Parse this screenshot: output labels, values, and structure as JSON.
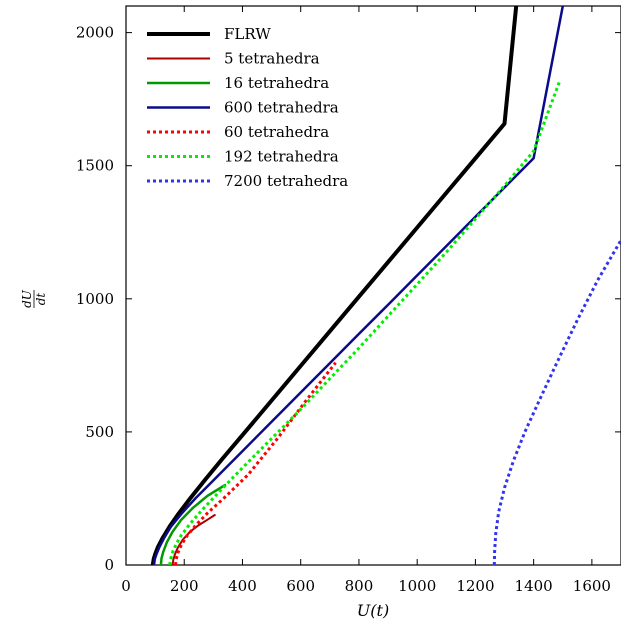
{
  "chart_data": {
    "type": "line",
    "title": "",
    "xlabel": "U(t)",
    "ylabel_num": "dU",
    "ylabel_den": "dt",
    "xlim": [
      0,
      1700
    ],
    "ylim": [
      0,
      2100
    ],
    "xticks": [
      0,
      200,
      400,
      600,
      800,
      1000,
      1200,
      1400,
      1600
    ],
    "yticks": [
      0,
      500,
      1000,
      1500,
      2000
    ],
    "grid": false,
    "legend_position": "top-left",
    "series": [
      {
        "name": "FLRW",
        "color": "#000000",
        "style": "solid",
        "width": 4,
        "x": [
          92,
          95,
          100,
          110,
          125,
          150,
          180,
          220,
          270,
          330,
          400,
          500,
          600,
          700,
          800,
          900,
          1000,
          1100,
          1200,
          1300,
          1340
        ],
        "y": [
          0,
          22,
          40,
          68,
          100,
          145,
          192,
          250,
          318,
          398,
          488,
          618,
          748,
          878,
          1008,
          1138,
          1268,
          1398,
          1528,
          1658,
          2100
        ]
      },
      {
        "name": "5 tetrahedra",
        "color": "#aa0000",
        "style": "solid",
        "width": 2,
        "x": [
          160,
          162,
          168,
          178,
          195,
          220,
          250,
          280,
          305
        ],
        "y": [
          0,
          18,
          40,
          65,
          95,
          125,
          150,
          170,
          188
        ]
      },
      {
        "name": "16 tetrahedra",
        "color": "#009900",
        "style": "solid",
        "width": 2.5,
        "x": [
          120,
          122,
          128,
          140,
          160,
          190,
          230,
          280,
          340
        ],
        "y": [
          0,
          25,
          50,
          85,
          125,
          170,
          215,
          260,
          300
        ]
      },
      {
        "name": "600 tetrahedra",
        "color": "#0b0b8a",
        "style": "solid",
        "width": 2.5,
        "x": [
          96,
          99,
          105,
          115,
          130,
          155,
          190,
          240,
          300,
          400,
          500,
          600,
          700,
          800,
          900,
          1000,
          1100,
          1200,
          1300,
          1400,
          1500
        ],
        "y": [
          0,
          22,
          42,
          68,
          100,
          145,
          192,
          252,
          318,
          428,
          538,
          648,
          758,
          868,
          978,
          1088,
          1198,
          1308,
          1418,
          1528,
          2100
        ]
      },
      {
        "name": "60 tetrahedra",
        "color": "#ff0000",
        "style": "dotted",
        "width": 3,
        "x": [
          170,
          172,
          178,
          190,
          210,
          240,
          280,
          340,
          420,
          520,
          620,
          720
        ],
        "y": [
          0,
          20,
          45,
          75,
          110,
          150,
          195,
          255,
          340,
          475,
          620,
          760
        ]
      },
      {
        "name": "192 tetrahedra",
        "color": "#00ee00",
        "style": "dotted",
        "width": 3,
        "x": [
          150,
          153,
          160,
          172,
          190,
          220,
          260,
          320,
          400,
          500,
          600,
          700,
          800,
          900,
          1000,
          1100,
          1200,
          1300,
          1400,
          1490
        ],
        "y": [
          0,
          22,
          48,
          78,
          112,
          155,
          205,
          275,
          365,
          475,
          585,
          700,
          815,
          935,
          1055,
          1175,
          1300,
          1425,
          1555,
          1820
        ]
      },
      {
        "name": "7200 tetrahedra",
        "color": "#3333ee",
        "style": "dotted",
        "width": 3,
        "x": [
          1265,
          1266,
          1270,
          1280,
          1300,
          1330,
          1370,
          1420,
          1480,
          1550,
          1620,
          1700
        ],
        "y": [
          0,
          50,
          120,
          200,
          290,
          390,
          500,
          620,
          760,
          920,
          1070,
          1220
        ]
      }
    ]
  }
}
